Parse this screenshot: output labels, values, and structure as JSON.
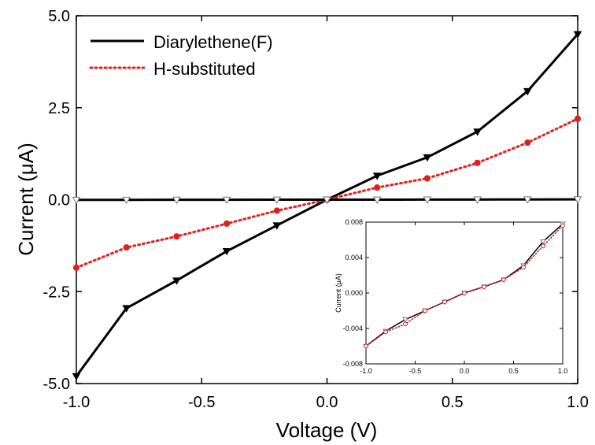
{
  "chart_data": [
    {
      "type": "line",
      "xlabel": "Voltage (V)",
      "ylabel": "Current (μA)",
      "xlim": [
        -1.0,
        1.0
      ],
      "ylim": [
        -5.0,
        5.0
      ],
      "xticks": [
        -1.0,
        -0.5,
        0.0,
        0.5,
        1.0
      ],
      "xtick_labels": [
        "-1.0",
        "-0.5",
        "0.0",
        "0.5",
        "1.0"
      ],
      "yticks": [
        -5.0,
        -2.5,
        0.0,
        2.5,
        5.0
      ],
      "ytick_labels": [
        "-5.0",
        "-2.5",
        "0.0",
        "2.5",
        "5.0"
      ],
      "grid": false,
      "legend_position": "top-left",
      "series": [
        {
          "name": "Diarylethene(F)",
          "color": "#000000",
          "style": "solid",
          "marker": "triangle-down",
          "x": [
            -1.0,
            -0.8,
            -0.6,
            -0.4,
            -0.2,
            0.0,
            0.2,
            0.4,
            0.6,
            0.8,
            1.0
          ],
          "y": [
            -4.8,
            -2.95,
            -2.2,
            -1.4,
            -0.7,
            0.0,
            0.65,
            1.15,
            1.85,
            2.95,
            4.5
          ]
        },
        {
          "name": "H-substituted",
          "color": "#e0201c",
          "style": "dotted",
          "marker": "circle",
          "x": [
            -1.0,
            -0.8,
            -0.6,
            -0.4,
            -0.2,
            0.0,
            0.2,
            0.4,
            0.6,
            0.8,
            1.0
          ],
          "y": [
            -1.85,
            -1.3,
            -1.0,
            -0.65,
            -0.3,
            0.0,
            0.33,
            0.58,
            1.0,
            1.55,
            2.2
          ]
        },
        {
          "color": "#000000",
          "style": "solid",
          "marker": "open-triangle-down",
          "x": [
            -1.0,
            -0.8,
            -0.6,
            -0.4,
            -0.2,
            0.0,
            0.2,
            0.4,
            0.6,
            0.8,
            1.0
          ],
          "y": [
            -0.006,
            -0.0043,
            -0.003,
            -0.002,
            -0.001,
            0.0,
            0.0007,
            0.0015,
            0.0031,
            0.0058,
            0.0078
          ]
        }
      ]
    },
    {
      "type": "line",
      "xlabel": "",
      "ylabel": "Current (μA)",
      "xlim": [
        -1.0,
        1.0
      ],
      "ylim": [
        -0.008,
        0.008
      ],
      "xticks": [
        -1.0,
        -0.5,
        0.0,
        0.5,
        1.0
      ],
      "xtick_labels": [
        "-1.0",
        "-0.5",
        "0.0",
        "0.5",
        "1.0"
      ],
      "yticks": [
        -0.008,
        -0.004,
        0.0,
        0.004,
        0.008
      ],
      "ytick_labels": [
        "-0.008",
        "-0.004",
        "0.000",
        "0.004",
        "0.008"
      ],
      "grid": false,
      "series": [
        {
          "color": "#000000",
          "style": "solid",
          "marker": "open-triangle-down",
          "x": [
            -1.0,
            -0.8,
            -0.6,
            -0.4,
            -0.2,
            0.0,
            0.2,
            0.4,
            0.6,
            0.8,
            1.0
          ],
          "y": [
            -0.006,
            -0.0043,
            -0.003,
            -0.002,
            -0.001,
            0.0,
            0.0007,
            0.0015,
            0.0031,
            0.0058,
            0.0078
          ]
        },
        {
          "color": "#c0202a",
          "style": "dotted",
          "marker": "open-circle",
          "x": [
            -1.0,
            -0.8,
            -0.6,
            -0.4,
            -0.2,
            0.0,
            0.2,
            0.4,
            0.6,
            0.8,
            1.0
          ],
          "y": [
            -0.006,
            -0.0044,
            -0.0035,
            -0.002,
            -0.001,
            0.0,
            0.0007,
            0.0015,
            0.0029,
            0.0053,
            0.0076
          ]
        }
      ]
    }
  ]
}
